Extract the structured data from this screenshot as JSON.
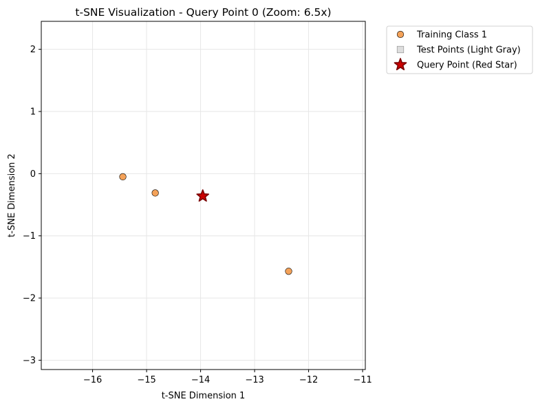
{
  "chart_data": {
    "type": "scatter",
    "title": "t-SNE Visualization - Query Point 0 (Zoom: 6.5x)",
    "xlabel": "t-SNE Dimension 1",
    "ylabel": "t-SNE Dimension 2",
    "xlim": [
      -16.95,
      -10.95
    ],
    "ylim": [
      -3.15,
      2.45
    ],
    "xticks": [
      -16,
      -15,
      -14,
      -13,
      -12,
      -11
    ],
    "yticks": [
      -3,
      -2,
      -1,
      0,
      1,
      2
    ],
    "xtick_labels": [
      "−16",
      "−15",
      "−14",
      "−13",
      "−12",
      "−11"
    ],
    "ytick_labels": [
      "−3",
      "−2",
      "−1",
      "0",
      "1",
      "2"
    ],
    "grid": true,
    "legend_position": "outside-top-right",
    "series": [
      {
        "name": "Training Class 1",
        "marker": "circle",
        "color": "#f4a259",
        "edge": "#000000",
        "points": [
          {
            "x": -15.44,
            "y": -0.05
          },
          {
            "x": -14.84,
            "y": -0.31
          },
          {
            "x": -12.37,
            "y": -1.57
          }
        ]
      },
      {
        "name": "Test Points (Light Gray)",
        "marker": "square",
        "color": "#dedede",
        "edge": "#888888",
        "points": []
      },
      {
        "name": "Query Point (Red Star)",
        "marker": "star",
        "color": "#cc0000",
        "edge": "#7a0000",
        "points": [
          {
            "x": -13.96,
            "y": -0.36
          }
        ]
      }
    ]
  }
}
